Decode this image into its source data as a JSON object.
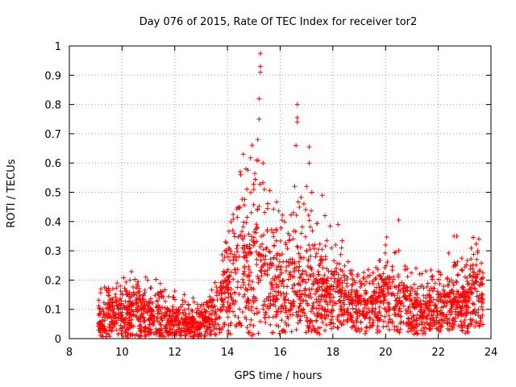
{
  "chart_data": {
    "type": "scatter",
    "title": "Day 076 of 2015, Rate Of TEC Index for receiver tor2",
    "xlabel": "GPS time / hours",
    "ylabel": "ROTI / TECUs",
    "xlim": [
      8,
      24
    ],
    "ylim": [
      0,
      1
    ],
    "x_ticks": [
      8,
      10,
      12,
      14,
      16,
      18,
      20,
      22,
      24
    ],
    "y_ticks": [
      0,
      0.1,
      0.2,
      0.3,
      0.4,
      0.5,
      0.6,
      0.7,
      0.8,
      0.9,
      1
    ],
    "x_tick_labels": [
      "8",
      "10",
      "12",
      "14",
      "16",
      "18",
      "20",
      "22",
      "24"
    ],
    "y_tick_labels": [
      "0",
      "0.1",
      "0.2",
      "0.3",
      "0.4",
      "0.5",
      "0.6",
      "0.7",
      "0.8",
      "0.9",
      "1"
    ],
    "grid": true,
    "marker": "+",
    "color": "#ff0000",
    "series": [
      {
        "name": "ROTI",
        "envelope": [
          {
            "x": 9.1,
            "base": 0.04,
            "amp": 0.06
          },
          {
            "x": 9.5,
            "base": 0.05,
            "amp": 0.07
          },
          {
            "x": 10.0,
            "base": 0.05,
            "amp": 0.08
          },
          {
            "x": 10.5,
            "base": 0.06,
            "amp": 0.09
          },
          {
            "x": 11.0,
            "base": 0.05,
            "amp": 0.08
          },
          {
            "x": 11.5,
            "base": 0.04,
            "amp": 0.07
          },
          {
            "x": 12.0,
            "base": 0.04,
            "amp": 0.06
          },
          {
            "x": 12.5,
            "base": 0.04,
            "amp": 0.05
          },
          {
            "x": 13.0,
            "base": 0.03,
            "amp": 0.05
          },
          {
            "x": 13.5,
            "base": 0.06,
            "amp": 0.07
          },
          {
            "x": 14.0,
            "base": 0.12,
            "amp": 0.15
          },
          {
            "x": 14.5,
            "base": 0.17,
            "amp": 0.22
          },
          {
            "x": 15.0,
            "base": 0.16,
            "amp": 0.24
          },
          {
            "x": 15.5,
            "base": 0.15,
            "amp": 0.2
          },
          {
            "x": 16.0,
            "base": 0.13,
            "amp": 0.16
          },
          {
            "x": 16.5,
            "base": 0.14,
            "amp": 0.18
          },
          {
            "x": 17.0,
            "base": 0.12,
            "amp": 0.16
          },
          {
            "x": 17.5,
            "base": 0.1,
            "amp": 0.14
          },
          {
            "x": 18.0,
            "base": 0.12,
            "amp": 0.13
          },
          {
            "x": 18.5,
            "base": 0.1,
            "amp": 0.1
          },
          {
            "x": 19.0,
            "base": 0.07,
            "amp": 0.08
          },
          {
            "x": 19.5,
            "base": 0.08,
            "amp": 0.09
          },
          {
            "x": 20.0,
            "base": 0.11,
            "amp": 0.12
          },
          {
            "x": 20.5,
            "base": 0.09,
            "amp": 0.1
          },
          {
            "x": 21.0,
            "base": 0.07,
            "amp": 0.08
          },
          {
            "x": 21.5,
            "base": 0.07,
            "amp": 0.08
          },
          {
            "x": 22.0,
            "base": 0.08,
            "amp": 0.09
          },
          {
            "x": 22.5,
            "base": 0.1,
            "amp": 0.1
          },
          {
            "x": 23.0,
            "base": 0.08,
            "amp": 0.1
          },
          {
            "x": 23.5,
            "base": 0.12,
            "amp": 0.12
          },
          {
            "x": 23.7,
            "base": 0.08,
            "amp": 0.08
          }
        ],
        "notable_points": [
          {
            "x": 9.2,
            "y": 0.17
          },
          {
            "x": 10.3,
            "y": 0.2
          },
          {
            "x": 10.9,
            "y": 0.21
          },
          {
            "x": 14.2,
            "y": 0.37
          },
          {
            "x": 14.5,
            "y": 0.56
          },
          {
            "x": 14.6,
            "y": 0.63
          },
          {
            "x": 14.7,
            "y": 0.58
          },
          {
            "x": 15.0,
            "y": 0.51
          },
          {
            "x": 15.1,
            "y": 0.61
          },
          {
            "x": 15.15,
            "y": 0.68
          },
          {
            "x": 15.2,
            "y": 0.75
          },
          {
            "x": 15.2,
            "y": 0.82
          },
          {
            "x": 15.25,
            "y": 0.91
          },
          {
            "x": 15.25,
            "y": 0.93
          },
          {
            "x": 15.25,
            "y": 0.975
          },
          {
            "x": 15.35,
            "y": 0.6
          },
          {
            "x": 15.4,
            "y": 0.51
          },
          {
            "x": 16.3,
            "y": 0.36
          },
          {
            "x": 16.5,
            "y": 0.43
          },
          {
            "x": 16.55,
            "y": 0.52
          },
          {
            "x": 16.6,
            "y": 0.66
          },
          {
            "x": 16.65,
            "y": 0.74
          },
          {
            "x": 16.65,
            "y": 0.755
          },
          {
            "x": 16.65,
            "y": 0.8
          },
          {
            "x": 16.9,
            "y": 0.46
          },
          {
            "x": 17.0,
            "y": 0.52
          },
          {
            "x": 17.1,
            "y": 0.6
          },
          {
            "x": 17.1,
            "y": 0.655
          },
          {
            "x": 17.2,
            "y": 0.5
          },
          {
            "x": 17.6,
            "y": 0.49
          },
          {
            "x": 17.7,
            "y": 0.42
          },
          {
            "x": 18.2,
            "y": 0.39
          },
          {
            "x": 18.1,
            "y": 0.32
          },
          {
            "x": 20.0,
            "y": 0.32
          },
          {
            "x": 20.5,
            "y": 0.405
          },
          {
            "x": 22.6,
            "y": 0.35
          },
          {
            "x": 22.7,
            "y": 0.35
          },
          {
            "x": 23.5,
            "y": 0.3
          }
        ]
      }
    ]
  }
}
